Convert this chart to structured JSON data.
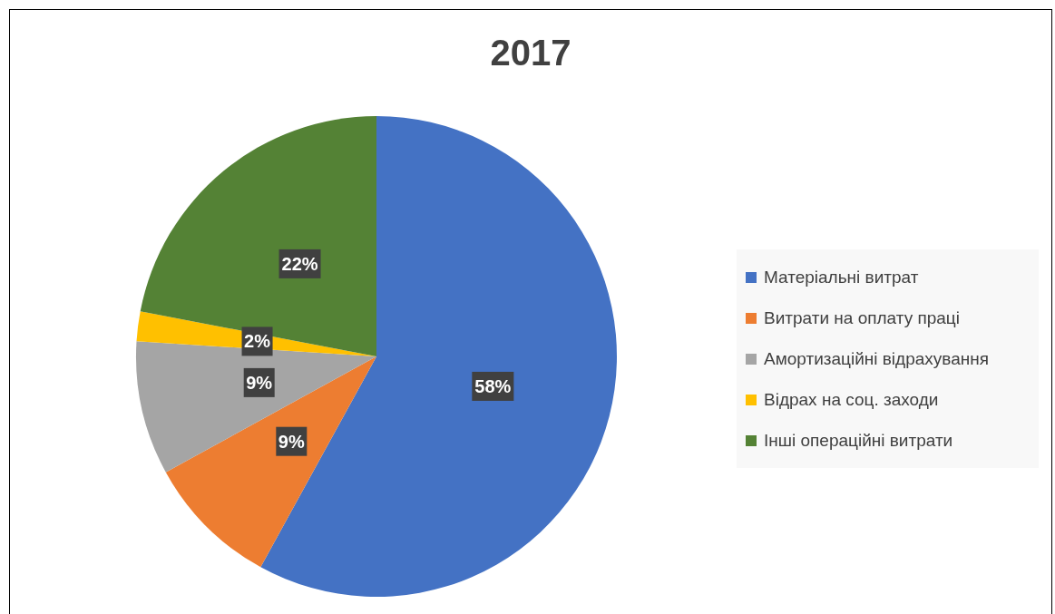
{
  "chart_data": {
    "type": "pie",
    "title": "2017",
    "categories": [
      "Матеріальні витрат",
      "Витрати на оплату праці",
      "Амортизаційні відрахування",
      "Відрах на соц. заходи",
      "Інші операційні витрати"
    ],
    "values": [
      58,
      9,
      9,
      2,
      22
    ],
    "value_labels": [
      "58%",
      "9%",
      "9%",
      "2%",
      "22%"
    ],
    "colors": [
      "#4472c4",
      "#ed7d31",
      "#a5a5a5",
      "#ffc000",
      "#548235"
    ],
    "legend": "right"
  }
}
